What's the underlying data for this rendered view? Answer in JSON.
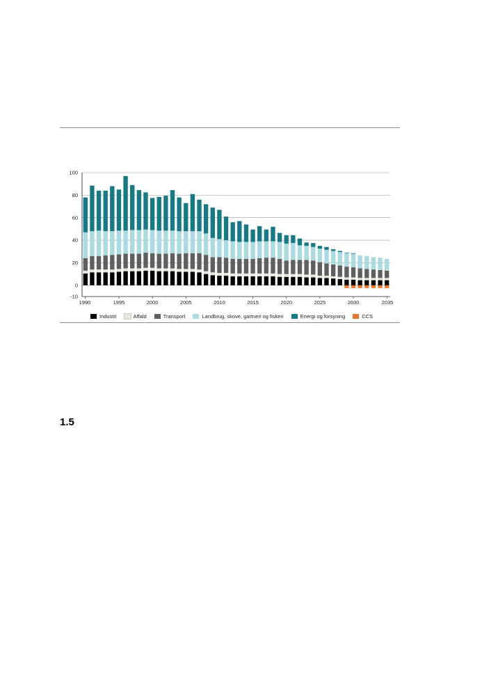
{
  "section_number": "1.5",
  "colors": {
    "Industri": "#000000",
    "Affald": "#e6e6dc",
    "Transport": "#5f5f5f",
    "Landbrug, skove, gartneri og fiskeri": "#a9dbe1",
    "Energi og forsyning": "#167a86",
    "CCS": "#e8772e"
  },
  "chart_data": {
    "type": "bar",
    "stacked": true,
    "title": "",
    "xlabel": "",
    "ylabel": "",
    "ylim": [
      -10,
      100
    ],
    "yticks": [
      -10,
      0,
      20,
      40,
      60,
      80,
      100
    ],
    "xticks": [
      1990,
      1995,
      2000,
      2005,
      2010,
      2015,
      2020,
      2025,
      2030,
      2035
    ],
    "grid": true,
    "legend_position": "bottom",
    "categories": [
      1990,
      1991,
      1992,
      1993,
      1994,
      1995,
      1996,
      1997,
      1998,
      1999,
      2000,
      2001,
      2002,
      2003,
      2004,
      2005,
      2006,
      2007,
      2008,
      2009,
      2010,
      2011,
      2012,
      2013,
      2014,
      2015,
      2016,
      2017,
      2018,
      2019,
      2020,
      2021,
      2022,
      2023,
      2024,
      2025,
      2026,
      2027,
      2028,
      2029,
      2030,
      2031,
      2032,
      2033,
      2034,
      2035
    ],
    "series": [
      {
        "name": "Industri",
        "values": [
          10.5,
          11.5,
          11.5,
          11.5,
          11.5,
          12,
          12.5,
          12.5,
          12.5,
          13,
          13,
          12.5,
          12.5,
          12.5,
          12,
          12,
          12,
          11.5,
          10,
          9,
          8.5,
          8.5,
          8,
          8,
          8,
          8,
          8,
          8,
          8,
          7.5,
          7.5,
          7.5,
          7.5,
          7,
          7,
          6.5,
          6.5,
          6,
          5.5,
          5,
          5,
          4.5,
          4.5,
          4.5,
          4.5,
          4.5
        ]
      },
      {
        "name": "Affald",
        "values": [
          2.5,
          2.5,
          2.5,
          2.5,
          2.5,
          2.5,
          2.5,
          2.5,
          2.5,
          2.5,
          2.5,
          2.5,
          2.5,
          2.5,
          2.5,
          2.5,
          2.5,
          2.5,
          2.5,
          2.5,
          2.5,
          2.5,
          2.5,
          2.5,
          2.5,
          2.5,
          2.5,
          2.5,
          2.5,
          2.5,
          2.5,
          2.5,
          2.5,
          2.5,
          2.5,
          2,
          2,
          2,
          2,
          2,
          2,
          2,
          2,
          2,
          2,
          2
        ]
      },
      {
        "name": "Transport",
        "values": [
          11,
          12,
          12,
          12.5,
          13,
          13,
          13,
          13,
          13,
          13.5,
          13,
          13,
          13,
          13.5,
          13.5,
          14,
          14,
          14.5,
          14.5,
          13.5,
          14,
          13.5,
          13,
          13,
          13,
          13,
          13.5,
          14,
          14,
          13.5,
          12,
          12.5,
          12.5,
          13,
          12.5,
          12,
          11,
          10.5,
          10,
          9.5,
          9,
          8.5,
          8,
          7.5,
          7,
          6.5
        ]
      },
      {
        "name": "Landbrug, skove, gartneri og fiskeri",
        "values": [
          23,
          22,
          22.5,
          21.5,
          21,
          21,
          20.5,
          21,
          21,
          20.5,
          20.5,
          20.5,
          20.5,
          20,
          20,
          19.5,
          19.5,
          19.5,
          19,
          17,
          16,
          15.5,
          15.5,
          15,
          15,
          15,
          15,
          14.5,
          14.5,
          15,
          15,
          15,
          13,
          12.5,
          12,
          12,
          12,
          12,
          12,
          12,
          12,
          11.5,
          11.5,
          11,
          11,
          10.5
        ]
      },
      {
        "name": "Energi og forsyning",
        "values": [
          31,
          40.5,
          35.5,
          36,
          40,
          36.5,
          48.5,
          40,
          35.5,
          33,
          28.5,
          30,
          31,
          36,
          30,
          25,
          33,
          28,
          26,
          27,
          26,
          21,
          17,
          18.5,
          15.5,
          11,
          13.5,
          10.5,
          13,
          8,
          7.5,
          7,
          6,
          3,
          3.5,
          2.5,
          2.5,
          1.5,
          1,
          0.5,
          0.5,
          0,
          0,
          0,
          0,
          0
        ]
      },
      {
        "name": "CCS",
        "values": [
          0,
          0,
          0,
          0,
          0,
          0,
          0,
          0,
          0,
          0,
          0,
          0,
          0,
          0,
          0,
          0,
          0,
          0,
          0,
          0,
          0,
          0,
          0,
          0,
          0,
          0,
          0,
          0,
          0,
          0,
          0,
          0,
          0,
          0,
          0,
          0,
          0,
          0,
          0,
          -2.5,
          -2.5,
          -2.5,
          -2.5,
          -2.5,
          -2.5,
          -2.5
        ]
      }
    ]
  }
}
